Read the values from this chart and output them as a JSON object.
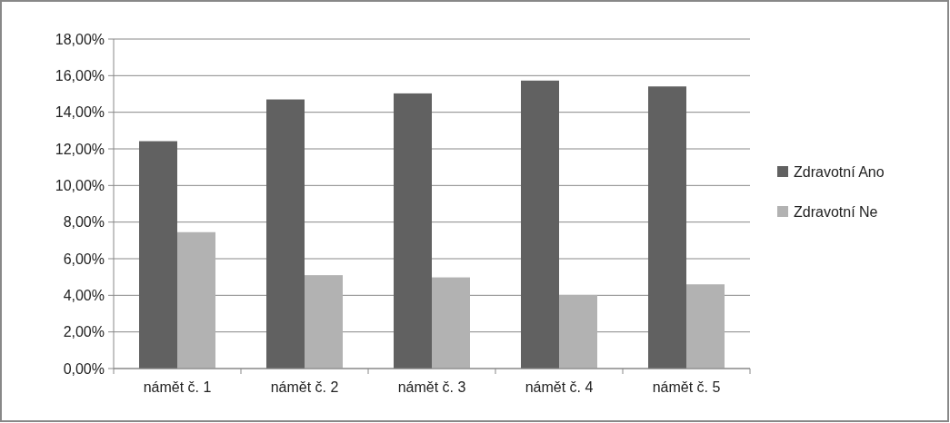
{
  "chart_data": {
    "type": "bar",
    "categories": [
      "námět č. 1",
      "námět č. 2",
      "námět č. 3",
      "námět č. 4",
      "námět č. 5"
    ],
    "series": [
      {
        "name": "Zdravotní Ano",
        "color": "#616161",
        "values": [
          12.42,
          14.7,
          15.03,
          15.73,
          15.41
        ]
      },
      {
        "name": "Zdravotní Ne",
        "color": "#b2b2b2",
        "values": [
          7.45,
          5.1,
          4.98,
          4.02,
          4.6
        ]
      }
    ],
    "ylim": [
      0,
      18
    ],
    "yticks": [
      {
        "value": 0,
        "label": "0,00%"
      },
      {
        "value": 2,
        "label": "2,00%"
      },
      {
        "value": 4,
        "label": "4,00%"
      },
      {
        "value": 6,
        "label": "6,00%"
      },
      {
        "value": 8,
        "label": "8,00%"
      },
      {
        "value": 10,
        "label": "10,00%"
      },
      {
        "value": 12,
        "label": "12,00%"
      },
      {
        "value": 14,
        "label": "14,00%"
      },
      {
        "value": 16,
        "label": "16,00%"
      },
      {
        "value": 18,
        "label": "18,00%"
      }
    ],
    "grid": "y",
    "legend": "right"
  }
}
